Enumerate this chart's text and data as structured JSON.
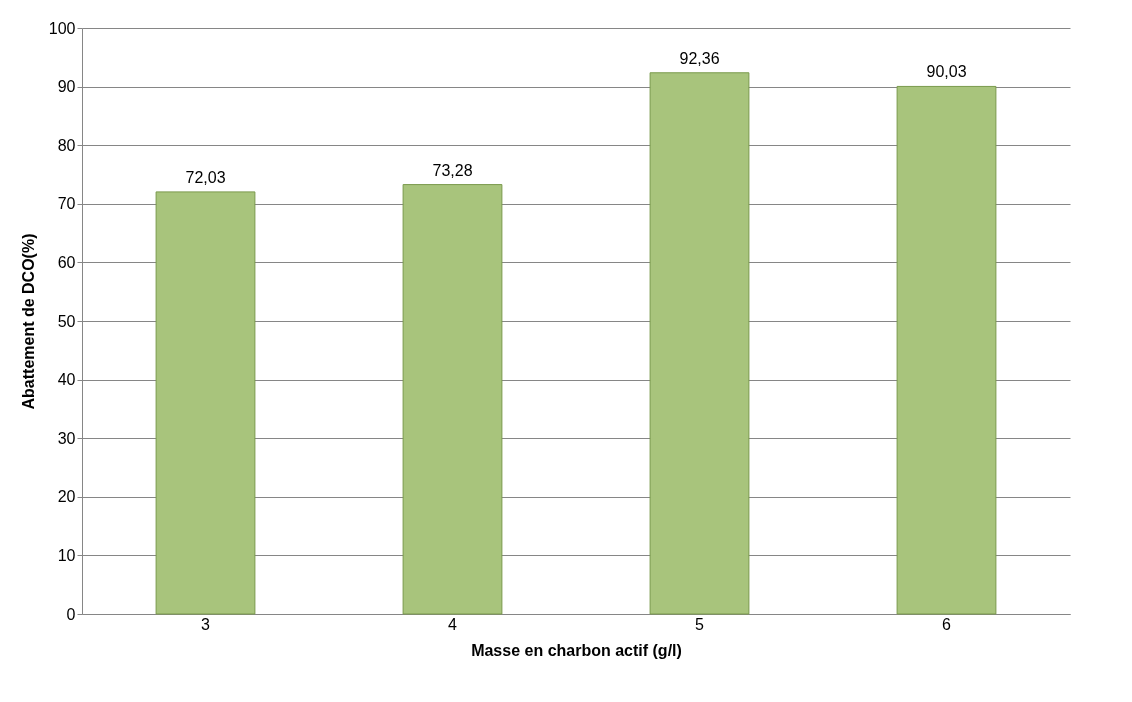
{
  "chart_data": {
    "type": "bar",
    "xlabel": "Masse en charbon actif (g/l)",
    "ylabel": "Abattement de DCO(%)",
    "categories": [
      "3",
      "4",
      "5",
      "6"
    ],
    "values": [
      72.03,
      73.28,
      92.36,
      90.03
    ],
    "value_labels": [
      "72,03",
      "73,28",
      "92,36",
      "90,03"
    ],
    "color": "#a8c47c",
    "ylim": [
      0,
      100
    ],
    "yticks": [
      0,
      10,
      20,
      30,
      40,
      50,
      60,
      70,
      80,
      90,
      100
    ],
    "grid": "y"
  }
}
